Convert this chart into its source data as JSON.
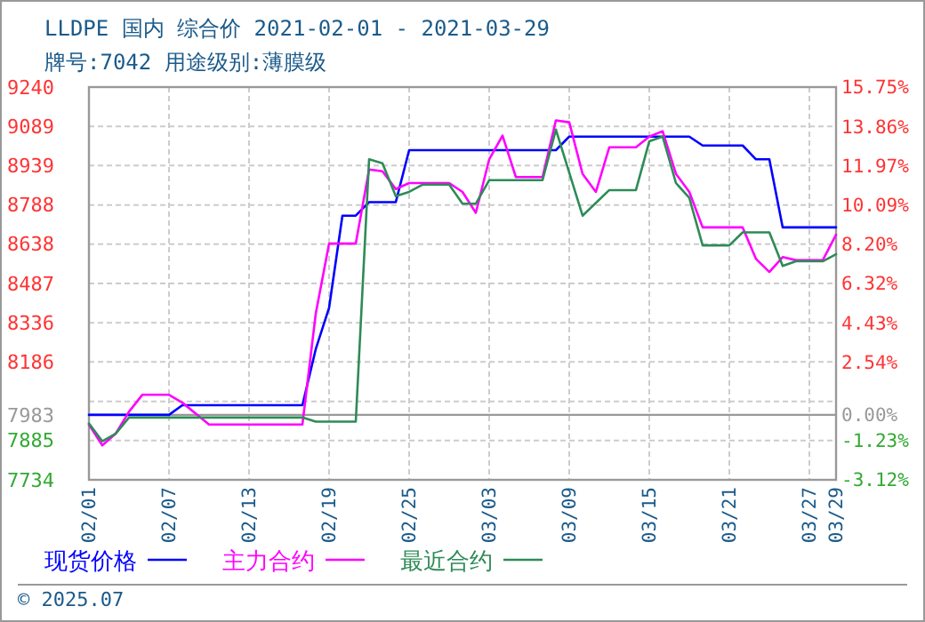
{
  "chart_data": {
    "type": "line",
    "title": "LLDPE 国内 综合价 2021-02-01 - 2021-03-29",
    "subtitle": "牌号:7042 用途级别:薄膜级",
    "xlim": [
      "2021-02-01",
      "2021-03-29"
    ],
    "xticks": [
      {
        "value": "2021-02-01",
        "label": "02/01"
      },
      {
        "value": "2021-02-07",
        "label": "02/07"
      },
      {
        "value": "2021-02-13",
        "label": "02/13"
      },
      {
        "value": "2021-02-19",
        "label": "02/19"
      },
      {
        "value": "2021-02-25",
        "label": "02/25"
      },
      {
        "value": "2021-03-03",
        "label": "03/03"
      },
      {
        "value": "2021-03-09",
        "label": "03/09"
      },
      {
        "value": "2021-03-15",
        "label": "03/15"
      },
      {
        "value": "2021-03-21",
        "label": "03/21"
      },
      {
        "value": "2021-03-27",
        "label": "03/27"
      },
      {
        "value": "2021-03-29",
        "label": "03/29"
      }
    ],
    "ylim": [
      7734,
      9240
    ],
    "yticks": [
      9240,
      9089,
      8939,
      8788,
      8638,
      8487,
      8336,
      8186,
      {
        "value": 8035,
        "label": null
      },
      7983,
      7885,
      7734
    ],
    "y2lim": [
      -3.12,
      15.75
    ],
    "y2ticks": [
      {
        "value": 15.75,
        "label": "15.75%"
      },
      {
        "value": 13.86,
        "label": "13.86%"
      },
      {
        "value": 11.97,
        "label": "11.97%"
      },
      {
        "value": 10.09,
        "label": "10.09%"
      },
      {
        "value": 8.2,
        "label": "8.20%"
      },
      {
        "value": 6.32,
        "label": "6.32%"
      },
      {
        "value": 4.43,
        "label": "4.43%"
      },
      {
        "value": 2.54,
        "label": "2.54%"
      },
      {
        "value": 0,
        "label": "0.00%"
      },
      {
        "value": -1.23,
        "label": "-1.23%"
      },
      {
        "value": -3.12,
        "label": "-3.12%"
      }
    ],
    "ref_lines": [
      {
        "axis": "y",
        "value": 7983,
        "color": "#999999"
      }
    ],
    "grid": true,
    "legend": "bottom",
    "line_style": "solid",
    "marker": "none",
    "series": [
      {
        "name": "现货价格",
        "color": "#0000ff",
        "x": [
          "2021-02-01",
          "2021-02-07",
          "2021-02-08",
          "2021-02-17",
          "2021-02-18",
          "2021-02-19",
          "2021-02-20",
          "2021-02-21",
          "2021-02-22",
          "2021-02-24",
          "2021-02-25",
          "2021-03-08",
          "2021-03-09",
          "2021-03-18",
          "2021-03-19",
          "2021-03-22",
          "2021-03-23",
          "2021-03-24",
          "2021-03-25",
          "2021-03-29"
        ],
        "values": [
          7983,
          7983,
          8020,
          8020,
          8235,
          8394,
          8747,
          8747,
          8799,
          8799,
          8998,
          8998,
          9050,
          9050,
          9016,
          9016,
          8963,
          8963,
          8702,
          8702
        ]
      },
      {
        "name": "主力合约",
        "color": "#ff00ff",
        "x": [
          "2021-02-01",
          "2021-02-02",
          "2021-02-03",
          "2021-02-04",
          "2021-02-05",
          "2021-02-07",
          "2021-02-08",
          "2021-02-10",
          "2021-02-17",
          "2021-02-18",
          "2021-02-19",
          "2021-02-21",
          "2021-02-22",
          "2021-02-23",
          "2021-02-24",
          "2021-02-25",
          "2021-02-28",
          "2021-03-01",
          "2021-03-02",
          "2021-03-03",
          "2021-03-04",
          "2021-03-05",
          "2021-03-07",
          "2021-03-08",
          "2021-03-09",
          "2021-03-10",
          "2021-03-11",
          "2021-03-12",
          "2021-03-14",
          "2021-03-15",
          "2021-03-16",
          "2021-03-17",
          "2021-03-18",
          "2021-03-19",
          "2021-03-22",
          "2021-03-23",
          "2021-03-24",
          "2021-03-25",
          "2021-03-26",
          "2021-03-28",
          "2021-03-29"
        ],
        "values": [
          7946,
          7866,
          7911,
          7995,
          8060,
          8060,
          8030,
          7946,
          7946,
          8371,
          8640,
          8640,
          8924,
          8917,
          8849,
          8872,
          8872,
          8838,
          8758,
          8963,
          9054,
          8895,
          8895,
          9112,
          9105,
          8907,
          8838,
          9009,
          9009,
          9050,
          9071,
          8907,
          8838,
          8702,
          8702,
          8581,
          8531,
          8588,
          8576,
          8576,
          8674
        ]
      },
      {
        "name": "最近合约",
        "color": "#2e8b57",
        "x": [
          "2021-02-01",
          "2021-02-02",
          "2021-02-03",
          "2021-02-04",
          "2021-02-17",
          "2021-02-18",
          "2021-02-21",
          "2021-02-22",
          "2021-02-23",
          "2021-02-24",
          "2021-02-25",
          "2021-02-26",
          "2021-02-28",
          "2021-03-01",
          "2021-03-02",
          "2021-03-03",
          "2021-03-07",
          "2021-03-08",
          "2021-03-10",
          "2021-03-12",
          "2021-03-14",
          "2021-03-15",
          "2021-03-16",
          "2021-03-17",
          "2021-03-18",
          "2021-03-19",
          "2021-03-21",
          "2021-03-22",
          "2021-03-24",
          "2021-03-25",
          "2021-03-26",
          "2021-03-28",
          "2021-03-29"
        ],
        "values": [
          7950,
          7882,
          7911,
          7973,
          7973,
          7957,
          7957,
          8963,
          8948,
          8822,
          8838,
          8866,
          8866,
          8793,
          8793,
          8883,
          8883,
          9077,
          8747,
          8845,
          8845,
          9032,
          9050,
          8872,
          8815,
          8633,
          8633,
          8683,
          8683,
          8554,
          8572,
          8572,
          8599
        ]
      }
    ],
    "annotations": [
      "© 2025.07"
    ]
  }
}
